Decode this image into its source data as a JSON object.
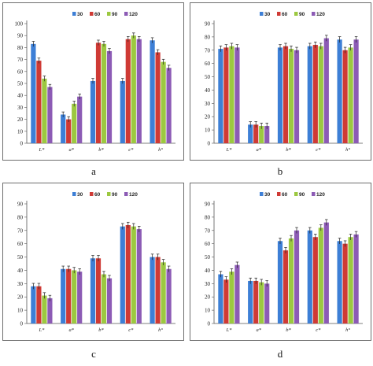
{
  "colors": {
    "s30": "#3d7fd6",
    "s60": "#cf3a35",
    "s90": "#9cc840",
    "s120": "#8c5bb5"
  },
  "captions": [
    "a",
    "b",
    "c",
    "d"
  ],
  "chart_data": [
    {
      "type": "bar",
      "categories": [
        "L*",
        "a*",
        "b*",
        "c*",
        "h°"
      ],
      "ylim": [
        0,
        100
      ],
      "yticks": [
        0,
        10,
        20,
        30,
        40,
        50,
        60,
        70,
        80,
        90,
        100
      ],
      "series": [
        {
          "name": "30",
          "values": [
            83,
            24,
            52,
            52,
            86
          ]
        },
        {
          "name": "60",
          "values": [
            69,
            20,
            84,
            87,
            76
          ]
        },
        {
          "name": "90",
          "values": [
            54,
            33,
            83,
            90,
            68
          ]
        },
        {
          "name": "120",
          "values": [
            47,
            39,
            77,
            87,
            63
          ]
        }
      ]
    },
    {
      "type": "bar",
      "categories": [
        "L*",
        "a*",
        "b*",
        "c*",
        "h°"
      ],
      "ylim": [
        0,
        90
      ],
      "yticks": [
        0,
        10,
        20,
        30,
        40,
        50,
        60,
        70,
        80,
        90
      ],
      "series": [
        {
          "name": "30",
          "values": [
            71,
            14,
            72,
            73,
            78
          ]
        },
        {
          "name": "60",
          "values": [
            72,
            14,
            73,
            74,
            70
          ]
        },
        {
          "name": "90",
          "values": [
            73,
            13,
            71,
            73,
            72
          ]
        },
        {
          "name": "120",
          "values": [
            72,
            13,
            70,
            79,
            78
          ]
        }
      ]
    },
    {
      "type": "bar",
      "categories": [
        "L*",
        "a*",
        "b*",
        "c*",
        "h°"
      ],
      "ylim": [
        0,
        90
      ],
      "yticks": [
        0,
        10,
        20,
        30,
        40,
        50,
        60,
        70,
        80,
        90
      ],
      "series": [
        {
          "name": "30",
          "values": [
            28,
            41,
            49,
            73,
            50
          ]
        },
        {
          "name": "60",
          "values": [
            28,
            41,
            49,
            74,
            50
          ]
        },
        {
          "name": "90",
          "values": [
            21,
            40,
            37,
            73,
            46
          ]
        },
        {
          "name": "120",
          "values": [
            19,
            39,
            34,
            71,
            41
          ]
        }
      ]
    },
    {
      "type": "bar",
      "categories": [
        "L*",
        "a*",
        "b*",
        "c*",
        "h°"
      ],
      "ylim": [
        0,
        90
      ],
      "yticks": [
        0,
        10,
        20,
        30,
        40,
        50,
        60,
        70,
        80,
        90
      ],
      "series": [
        {
          "name": "30",
          "values": [
            37,
            32,
            62,
            70,
            62
          ]
        },
        {
          "name": "60",
          "values": [
            33,
            32,
            55,
            65,
            60
          ]
        },
        {
          "name": "90",
          "values": [
            39,
            31,
            64,
            72,
            65
          ]
        },
        {
          "name": "120",
          "values": [
            44,
            30,
            70,
            76,
            67
          ]
        }
      ]
    }
  ]
}
